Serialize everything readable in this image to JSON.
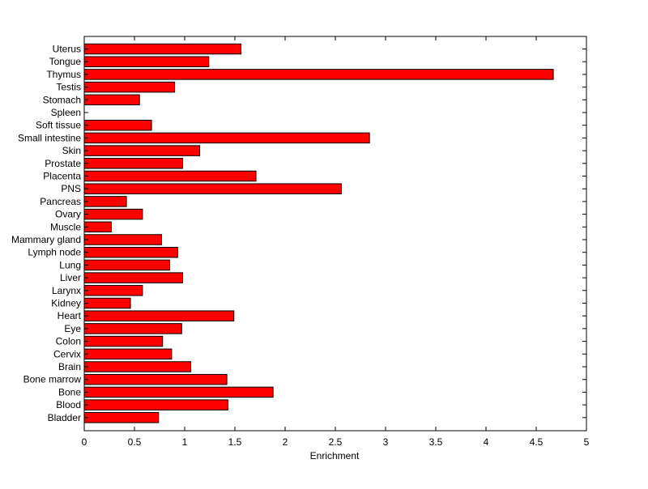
{
  "chart_data": {
    "type": "bar",
    "orientation": "horizontal",
    "title": "",
    "xlabel": "Enrichment",
    "ylabel": "",
    "xlim": [
      0,
      5
    ],
    "xticks": [
      "0",
      "0.5",
      "1",
      "1.5",
      "2",
      "2.5",
      "3",
      "3.5",
      "4",
      "4.5",
      "5"
    ],
    "grid": false,
    "bar_color": "#ff0000",
    "categories": [
      "Uterus",
      "Tongue",
      "Thymus",
      "Testis",
      "Stomach",
      "Spleen",
      "Soft tissue",
      "Small intestine",
      "Skin",
      "Prostate",
      "Placenta",
      "PNS",
      "Pancreas",
      "Ovary",
      "Muscle",
      "Mammary gland",
      "Lymph node",
      "Lung",
      "Liver",
      "Larynx",
      "Kidney",
      "Heart",
      "Eye",
      "Colon",
      "Cervix",
      "Brain",
      "Bone marrow",
      "Bone",
      "Blood",
      "Bladder"
    ],
    "values": [
      1.56,
      1.24,
      4.67,
      0.9,
      0.55,
      0.0,
      0.67,
      2.84,
      1.15,
      0.98,
      1.71,
      2.56,
      0.42,
      0.58,
      0.27,
      0.77,
      0.93,
      0.85,
      0.98,
      0.58,
      0.46,
      1.49,
      0.97,
      0.78,
      0.87,
      1.06,
      1.42,
      1.88,
      1.43,
      0.74
    ]
  }
}
